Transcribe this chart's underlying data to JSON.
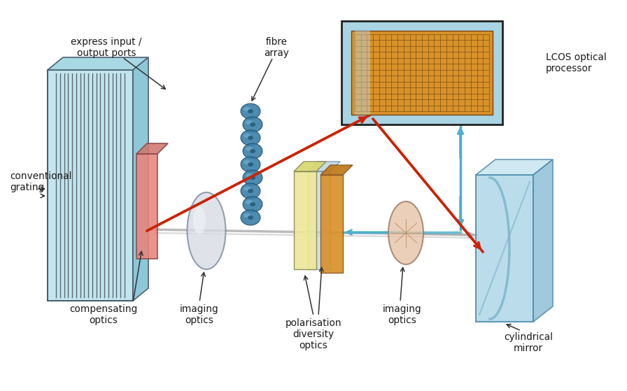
{
  "bg_color": "#ffffff",
  "colors": {
    "grating_face": "#c2e5ee",
    "grating_top": "#a8d8e4",
    "grating_side": "#8ec8d8",
    "grating_lines": "#5a6a72",
    "comp_face": "#e8857a",
    "comp_top": "#d07870",
    "lens1_fill": "#d8dde4",
    "lens1_shine": "#eef2f6",
    "yellow_plate": "#ede898",
    "blue_plate": "#b8d8e8",
    "orange_plate": "#d9922a",
    "lens2_fill": "#e8c4a8",
    "lens2_lines": "#b89070",
    "mirror_face": "#b0d8e8",
    "mirror_top": "#c8e4f0",
    "mirror_side": "#90c0d8",
    "mirror_curve": "#80b8cc",
    "lcos_border": "#a8d4e4",
    "lcos_orange": "#d9922a",
    "lcos_grid": "#7a5010",
    "fibre_blue": "#3a7fa8",
    "fibre_highlight": "#70aacc",
    "fibre_dark": "#1a4f6a",
    "red_beam": "#cc2200",
    "cyan_beam": "#4ab0cc",
    "gray_beam": "#b0b0b0",
    "text_color": "#1a1a1a",
    "arrow_color": "#333333"
  },
  "labels": {
    "conventional_grating": "conventional\ngrating",
    "compensating_optics": "compensating\noptics",
    "imaging_optics_1": "imaging\noptics",
    "polarisation": "polarisation\ndiversity\noptics",
    "imaging_optics_2": "imaging\noptics",
    "cylindrical_mirror": "cylindrical\nmirror",
    "lcos": "LCOS optical\nprocessor",
    "fibre_array": "fibre\narray",
    "express": "express input /\noutput ports"
  }
}
